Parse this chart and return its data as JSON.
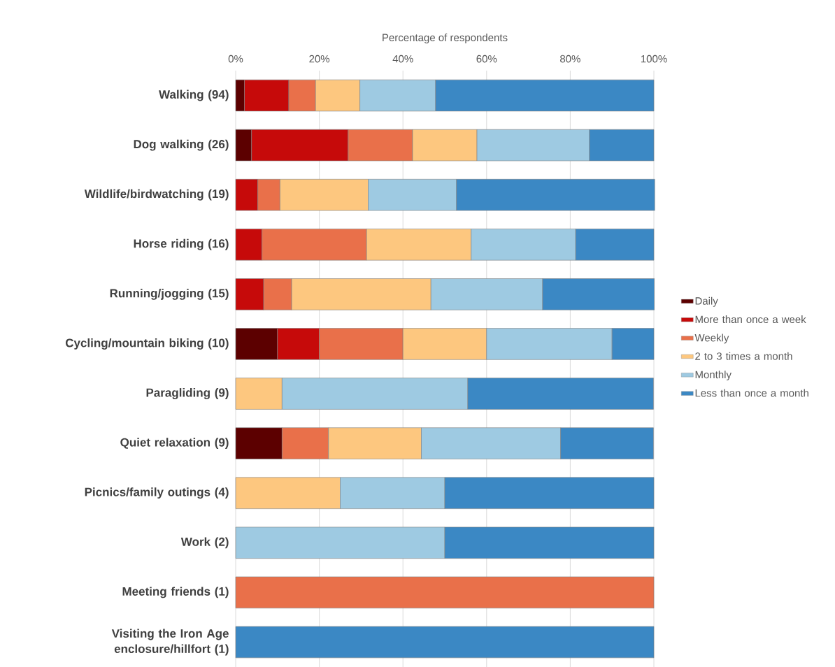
{
  "chart_data": {
    "type": "bar",
    "orientation": "horizontal",
    "stacked": true,
    "xlabel": "Percentage of respondents",
    "categories": [
      "Walking (94)",
      "Dog walking (26)",
      "Wildlife/birdwatching (19)",
      "Horse riding (16)",
      "Running/jogging (15)",
      "Cycling/mountain biking (10)",
      "Paragliding (9)",
      "Quiet relaxation (9)",
      "Picnics/family outings (4)",
      "Work (2)",
      "Meeting friends (1)",
      "Visiting the Iron Age enclosure/hillfort (1)"
    ],
    "series": [
      {
        "name": "Daily",
        "color": "#5c0000",
        "values": [
          2.1,
          3.8,
          null,
          null,
          null,
          10,
          null,
          11.1,
          null,
          null,
          null,
          null
        ]
      },
      {
        "name": "More than once a week",
        "color": "#c60a0a",
        "values": [
          10.6,
          23.1,
          5.3,
          6.3,
          6.7,
          10,
          null,
          null,
          null,
          null,
          null,
          null
        ]
      },
      {
        "name": "Weekly",
        "color": "#e9704a",
        "values": [
          6.4,
          15.4,
          5.3,
          25,
          6.7,
          20,
          null,
          11.1,
          null,
          null,
          100,
          null
        ]
      },
      {
        "name": "2 to 3 times a month",
        "color": "#fdc77f",
        "values": [
          10.6,
          15.4,
          21.1,
          25,
          33.3,
          20,
          11.1,
          22.2,
          25,
          null,
          null,
          null
        ]
      },
      {
        "name": "Monthly",
        "color": "#9ecae2",
        "values": [
          18.1,
          26.9,
          21.1,
          25,
          26.7,
          30,
          44.4,
          33.3,
          25,
          50,
          null,
          null
        ]
      },
      {
        "name": "Less than once a month",
        "color": "#3b88c4",
        "values": [
          52.2,
          15.4,
          47.4,
          18.7,
          26.7,
          10,
          44.4,
          22.2,
          50,
          50,
          null,
          100
        ]
      }
    ],
    "xlim": [
      0,
      100
    ],
    "xticks": [
      {
        "value": 0,
        "label": "0%"
      },
      {
        "value": 20,
        "label": "20%"
      },
      {
        "value": 40,
        "label": "40%"
      },
      {
        "value": 60,
        "label": "60%"
      },
      {
        "value": 80,
        "label": "80%"
      },
      {
        "value": 100,
        "label": "100%"
      }
    ],
    "grid": "x",
    "legend": "right"
  }
}
